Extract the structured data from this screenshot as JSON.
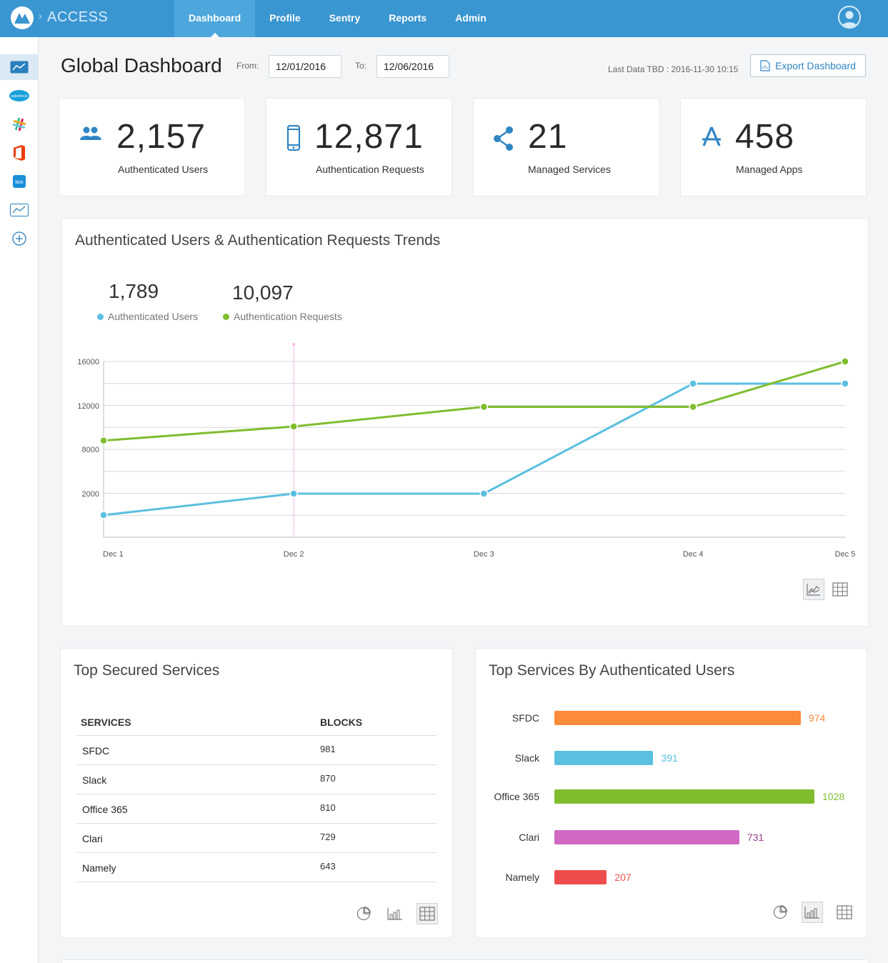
{
  "header": {
    "brand": "ACCESS",
    "brand_separator": "›",
    "nav": [
      {
        "label": "Dashboard",
        "active": true
      },
      {
        "label": "Profile",
        "active": false
      },
      {
        "label": "Sentry",
        "active": false
      },
      {
        "label": "Reports",
        "active": false
      },
      {
        "label": "Admin",
        "active": false
      }
    ]
  },
  "sidebar": {
    "items": [
      {
        "icon": "dashboard-chart-icon",
        "active": true
      },
      {
        "icon": "salesforce-icon",
        "text": "salesforce"
      },
      {
        "icon": "slack-icon"
      },
      {
        "icon": "office-365-icon"
      },
      {
        "icon": "box-icon",
        "text": "box"
      },
      {
        "icon": "trend-chart-icon"
      },
      {
        "icon": "add-circle-icon"
      }
    ]
  },
  "toolbar": {
    "title": "Global Dashboard",
    "from_label": "From:",
    "from_value": "12/01/2016",
    "to_label": "To:",
    "to_value": "12/06/2016",
    "last_data": "Last Data TBD : 2016-11-30 10:15",
    "export_label": "Export Dashboard"
  },
  "stats": [
    {
      "value": "2,157",
      "label": "Authenticated Users",
      "icon": "users-icon"
    },
    {
      "value": "12,871",
      "label": "Authentication Requests",
      "icon": "mobile-phone-icon"
    },
    {
      "value": "21",
      "label": "Managed Services",
      "icon": "share-icon"
    },
    {
      "value": "458",
      "label": "Managed Apps",
      "icon": "app-store-icon"
    }
  ],
  "trend": {
    "title": "Authenticated Users & Authentication Requests Trends",
    "summary": [
      {
        "value": "1,789",
        "label": "Authenticated Users",
        "color": "#5bbfe0"
      },
      {
        "value": "10,097",
        "label": "Authentication Requests",
        "color": "#7fbd2e"
      }
    ]
  },
  "chart_data": [
    {
      "type": "line",
      "title": "Authenticated Users & Authentication Requests Trends",
      "x": [
        "Dec 1",
        "Dec 2",
        "Dec 3",
        "Dec 4",
        "Dec 5"
      ],
      "x_positions": [
        0,
        1,
        2,
        3.1,
        3.9
      ],
      "yticks": [
        "2000",
        "8000",
        "12000",
        "16000"
      ],
      "series": [
        {
          "name": "Authenticated Users",
          "color": "#5bbfe0",
          "values": [
            0,
            2000,
            2000,
            14000,
            14000
          ]
        },
        {
          "name": "Authentication Requests",
          "color": "#7fbd2e",
          "values": [
            8800,
            10100,
            11900,
            11900,
            16000
          ]
        }
      ],
      "highlight_x": "Dec 2",
      "grid": true
    },
    {
      "type": "table",
      "title": "Top Secured Services",
      "columns": [
        "SERVICES",
        "BLOCKS"
      ],
      "rows": [
        [
          "SFDC",
          "981"
        ],
        [
          "Slack",
          "870"
        ],
        [
          "Office 365",
          "810"
        ],
        [
          "Clari",
          "729"
        ],
        [
          "Namely",
          "643"
        ]
      ]
    },
    {
      "type": "bar",
      "orientation": "horizontal",
      "title": "Top Services By Authenticated Users",
      "categories": [
        "SFDC",
        "Slack",
        "Office 365",
        "Clari",
        "Namely"
      ],
      "values": [
        974,
        391,
        1028,
        731,
        207
      ],
      "colors": [
        "#fb8a3a",
        "#5bbfe0",
        "#7fbd2e",
        "#d069c3",
        "#ee4d4d"
      ],
      "xlim": [
        0,
        1028
      ]
    }
  ]
}
